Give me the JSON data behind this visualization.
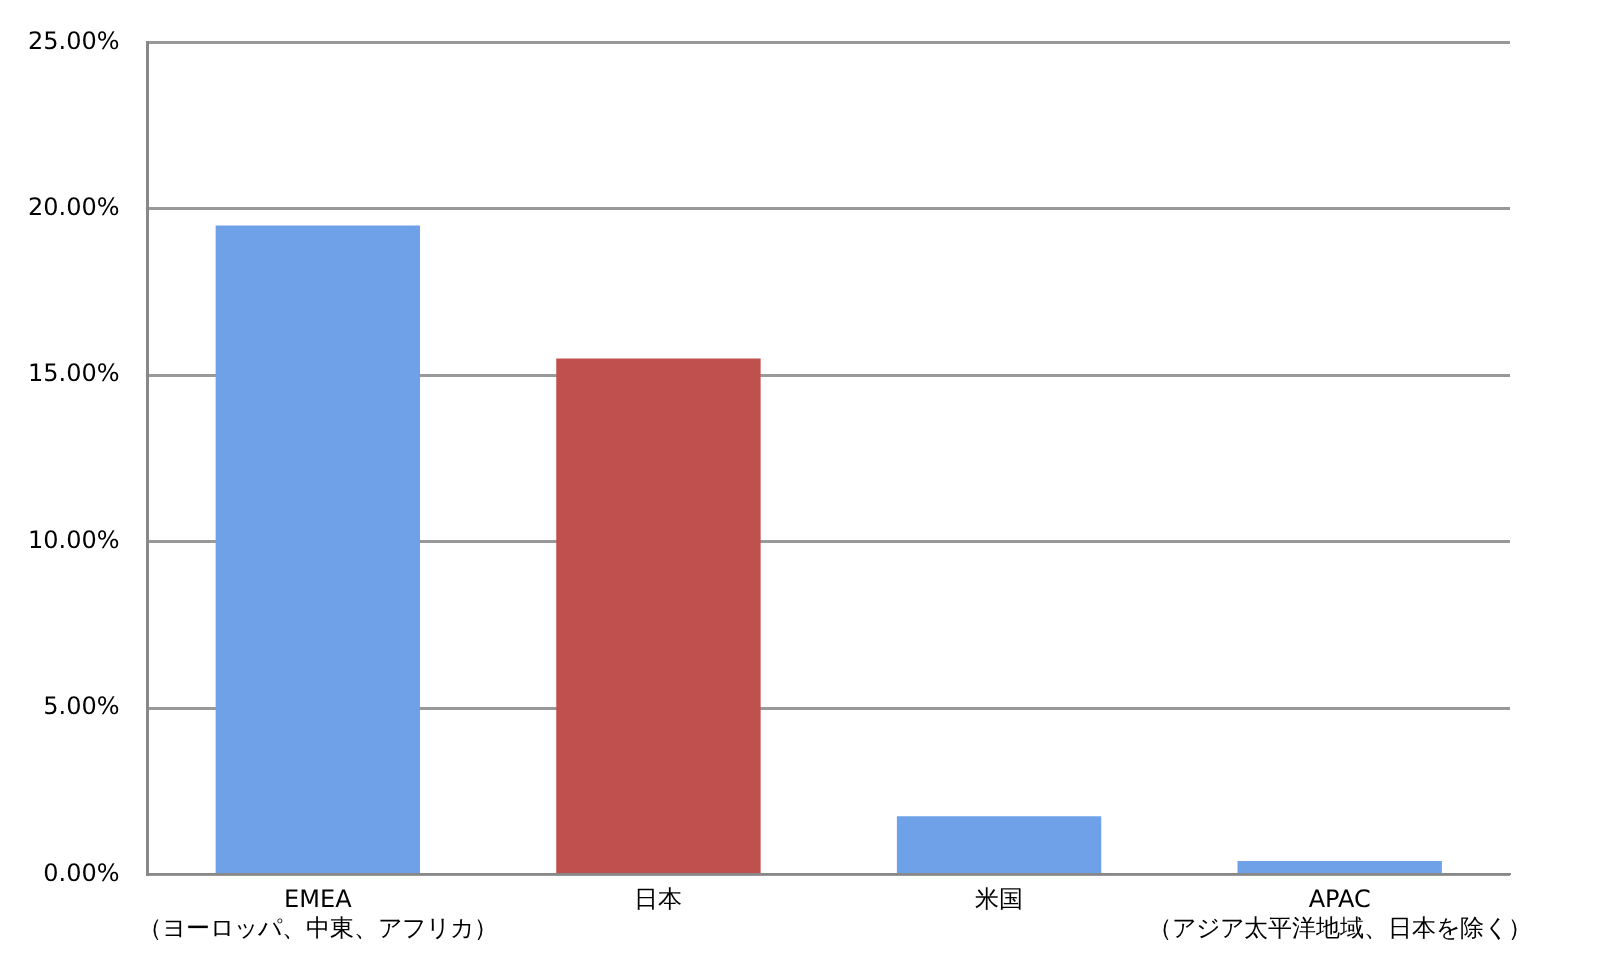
{
  "chart_data": {
    "type": "bar",
    "categories": [
      "EMEA\n（ヨーロッパ、中東、アフリカ）",
      "日本",
      "米国",
      "APAC\n（アジア太平洋地域、日本を除く）"
    ],
    "values": [
      19.5,
      15.5,
      1.75,
      0.4
    ],
    "colors": [
      "#6fa1e8",
      "#c0504d",
      "#6fa1e8",
      "#6fa1e8"
    ],
    "ylim": [
      0,
      25
    ],
    "yticks": [
      {
        "value": 0,
        "label": "0.00%"
      },
      {
        "value": 5,
        "label": "5.00%"
      },
      {
        "value": 10,
        "label": "10.00%"
      },
      {
        "value": 15,
        "label": "15.00%"
      },
      {
        "value": 20,
        "label": "20.00%"
      },
      {
        "value": 25,
        "label": "25.00%"
      }
    ],
    "grid": "y",
    "legend": false
  }
}
